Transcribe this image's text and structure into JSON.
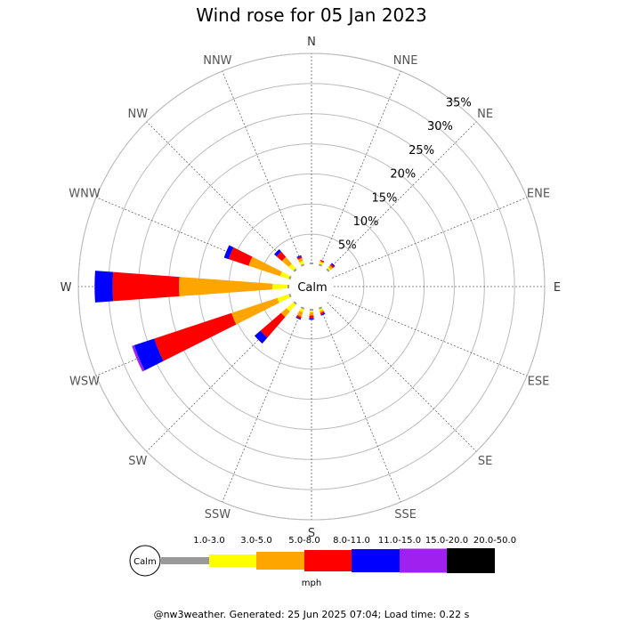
{
  "chart_data": {
    "type": "wind-rose",
    "title": "Wind rose for 05 Jan 2023",
    "directions": [
      "N",
      "NNE",
      "NE",
      "ENE",
      "E",
      "ESE",
      "SE",
      "SSE",
      "S",
      "SSW",
      "SW",
      "WSW",
      "W",
      "WNW",
      "NW",
      "NNW"
    ],
    "ring_labels": [
      "5%",
      "10%",
      "15%",
      "20%",
      "25%",
      "30%",
      "35%"
    ],
    "ring_values": [
      5,
      10,
      15,
      20,
      25,
      30,
      35
    ],
    "center_label": "Calm",
    "calm_percent": 3,
    "speed_bins": [
      {
        "label": "1.0-3.0",
        "color": "#999999"
      },
      {
        "label": "3.0-5.0",
        "color": "#ffff00"
      },
      {
        "label": "5.0-8.0",
        "color": "#ffa500"
      },
      {
        "label": "8.0-11.0",
        "color": "#ff0000"
      },
      {
        "label": "11.0-15.0",
        "color": "#0000ff"
      },
      {
        "label": "15.0-20.0",
        "color": "#a020f0"
      },
      {
        "label": "20.0-50.0",
        "color": "#000000"
      }
    ],
    "speed_unit": "mph",
    "series": [
      {
        "direction": "N",
        "values": [
          0.3,
          0,
          0,
          0,
          0,
          0,
          0
        ]
      },
      {
        "direction": "NNE",
        "values": [
          0.3,
          0.3,
          0.2,
          0.2,
          0,
          0,
          0
        ]
      },
      {
        "direction": "NE",
        "values": [
          0.3,
          0.3,
          0.4,
          0.3,
          0.2,
          0,
          0
        ]
      },
      {
        "direction": "ENE",
        "values": [
          0,
          0,
          0,
          0,
          0,
          0,
          0
        ]
      },
      {
        "direction": "E",
        "values": [
          0,
          0,
          0,
          0,
          0,
          0,
          0
        ]
      },
      {
        "direction": "ESE",
        "values": [
          0,
          0,
          0,
          0,
          0,
          0,
          0
        ]
      },
      {
        "direction": "SE",
        "values": [
          0,
          0,
          0,
          0,
          0,
          0,
          0
        ]
      },
      {
        "direction": "SSE",
        "values": [
          0.3,
          0.3,
          0.3,
          0.3,
          0.2,
          0,
          0
        ]
      },
      {
        "direction": "S",
        "values": [
          0.3,
          0.3,
          0.5,
          0.5,
          0.2,
          0,
          0
        ]
      },
      {
        "direction": "SSW",
        "values": [
          0.3,
          0.5,
          0.8,
          0.3,
          0.2,
          0,
          0
        ]
      },
      {
        "direction": "SW",
        "values": [
          0.3,
          1.5,
          1.2,
          4.5,
          1.3,
          0,
          0
        ]
      },
      {
        "direction": "WSW",
        "values": [
          0.3,
          2.0,
          8.0,
          13.5,
          3.5,
          0.4,
          0
        ]
      },
      {
        "direction": "W",
        "values": [
          0.3,
          2.5,
          15.5,
          11.0,
          3.0,
          0,
          0
        ]
      },
      {
        "direction": "WNW",
        "values": [
          0.3,
          1.5,
          5.5,
          3.5,
          0.8,
          0,
          0
        ]
      },
      {
        "direction": "NW",
        "values": [
          0.3,
          1.0,
          1.5,
          1.2,
          0.5,
          0,
          0
        ]
      },
      {
        "direction": "NNW",
        "values": [
          0.3,
          0.5,
          0.5,
          0.3,
          0.2,
          0,
          0
        ]
      }
    ],
    "rmax": 35
  },
  "footer": "@nw3weather. Generated: 25 Jun 2025 07:04; Load time: 0.22 s"
}
